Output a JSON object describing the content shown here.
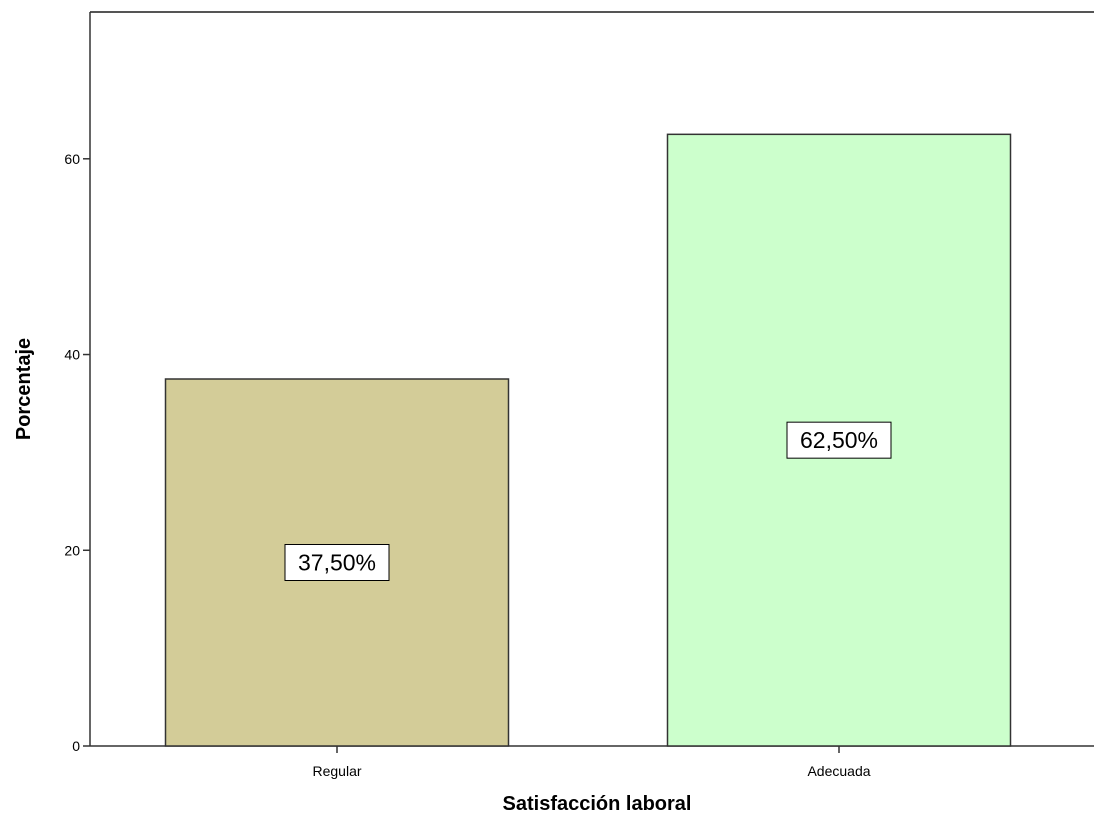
{
  "chart_data": {
    "type": "bar",
    "categories": [
      "Regular",
      "Adecuada"
    ],
    "values": [
      37.5,
      62.5
    ],
    "data_labels": [
      "37,50%",
      "62,50%"
    ],
    "colors": [
      "#d3cc98",
      "#ccffcc"
    ],
    "xlabel": "Satisfacción laboral",
    "ylabel": "Porcentaje",
    "ylim": [
      0,
      75
    ],
    "yticks": [
      0,
      20,
      40,
      60
    ],
    "ytick_labels": [
      "0",
      "20",
      "40",
      "60"
    ],
    "grid": false,
    "legend": "none"
  }
}
